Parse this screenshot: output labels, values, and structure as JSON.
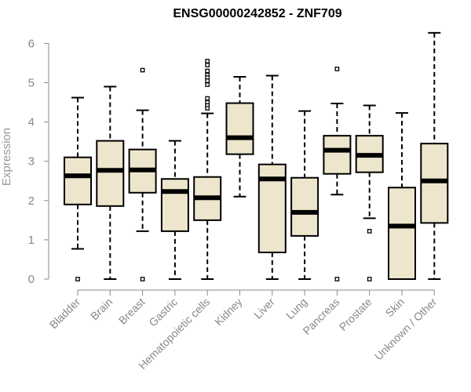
{
  "chart_data": {
    "type": "boxplot",
    "title": "ENSG00000242852 - ZNF709",
    "xlabel": "",
    "ylabel": "Expression",
    "ylim": [
      0,
      6.3
    ],
    "yticks": [
      0,
      1,
      2,
      3,
      4,
      5,
      6
    ],
    "colors": {
      "box_fill": "#ede6cd",
      "stroke": "#000000",
      "axis": "#888888",
      "label": "#888888"
    },
    "categories": [
      "Bladder",
      "Brain",
      "Breast",
      "Gastric",
      "Hematopoietic cells",
      "Kidney",
      "Liver",
      "Lung",
      "Pancreas",
      "Prostate",
      "Skin",
      "Unknown / Other"
    ],
    "series": [
      {
        "name": "Bladder",
        "whisker_low": 0.77,
        "q1": 1.9,
        "median": 2.63,
        "q3": 3.1,
        "whisker_high": 4.62,
        "outliers": [
          0.0
        ]
      },
      {
        "name": "Brain",
        "whisker_low": 0.0,
        "q1": 1.86,
        "median": 2.77,
        "q3": 3.52,
        "whisker_high": 4.9,
        "outliers": []
      },
      {
        "name": "Breast",
        "whisker_low": 1.22,
        "q1": 2.2,
        "median": 2.78,
        "q3": 3.3,
        "whisker_high": 4.3,
        "outliers": [
          5.32,
          0.0
        ]
      },
      {
        "name": "Gastric",
        "whisker_low": 0.0,
        "q1": 1.22,
        "median": 2.23,
        "q3": 2.55,
        "whisker_high": 3.52,
        "outliers": []
      },
      {
        "name": "Hematopoietic cells",
        "whisker_low": 0.0,
        "q1": 1.5,
        "median": 2.07,
        "q3": 2.6,
        "whisker_high": 4.22,
        "outliers": [
          5.55,
          5.45,
          5.3,
          5.2,
          5.13,
          5.05,
          4.95,
          4.6,
          4.5,
          4.42,
          4.35
        ]
      },
      {
        "name": "Kidney",
        "whisker_low": 2.1,
        "q1": 3.18,
        "median": 3.6,
        "q3": 4.48,
        "whisker_high": 5.15,
        "outliers": []
      },
      {
        "name": "Liver",
        "whisker_low": 0.0,
        "q1": 0.68,
        "median": 2.55,
        "q3": 2.92,
        "whisker_high": 5.18,
        "outliers": []
      },
      {
        "name": "Lung",
        "whisker_low": 0.0,
        "q1": 1.1,
        "median": 1.7,
        "q3": 2.58,
        "whisker_high": 4.28,
        "outliers": []
      },
      {
        "name": "Pancreas",
        "whisker_low": 2.15,
        "q1": 2.68,
        "median": 3.28,
        "q3": 3.65,
        "whisker_high": 4.47,
        "outliers": [
          5.35,
          0.0
        ]
      },
      {
        "name": "Prostate",
        "whisker_low": 1.55,
        "q1": 2.72,
        "median": 3.15,
        "q3": 3.65,
        "whisker_high": 4.42,
        "outliers": [
          1.22,
          0.0
        ]
      },
      {
        "name": "Skin",
        "whisker_low": 0.0,
        "q1": 0.0,
        "median": 1.35,
        "q3": 2.33,
        "whisker_high": 4.23,
        "outliers": []
      },
      {
        "name": "Unknown / Other",
        "whisker_low": 0.0,
        "q1": 1.43,
        "median": 2.5,
        "q3": 3.45,
        "whisker_high": 6.27,
        "outliers": []
      }
    ]
  }
}
